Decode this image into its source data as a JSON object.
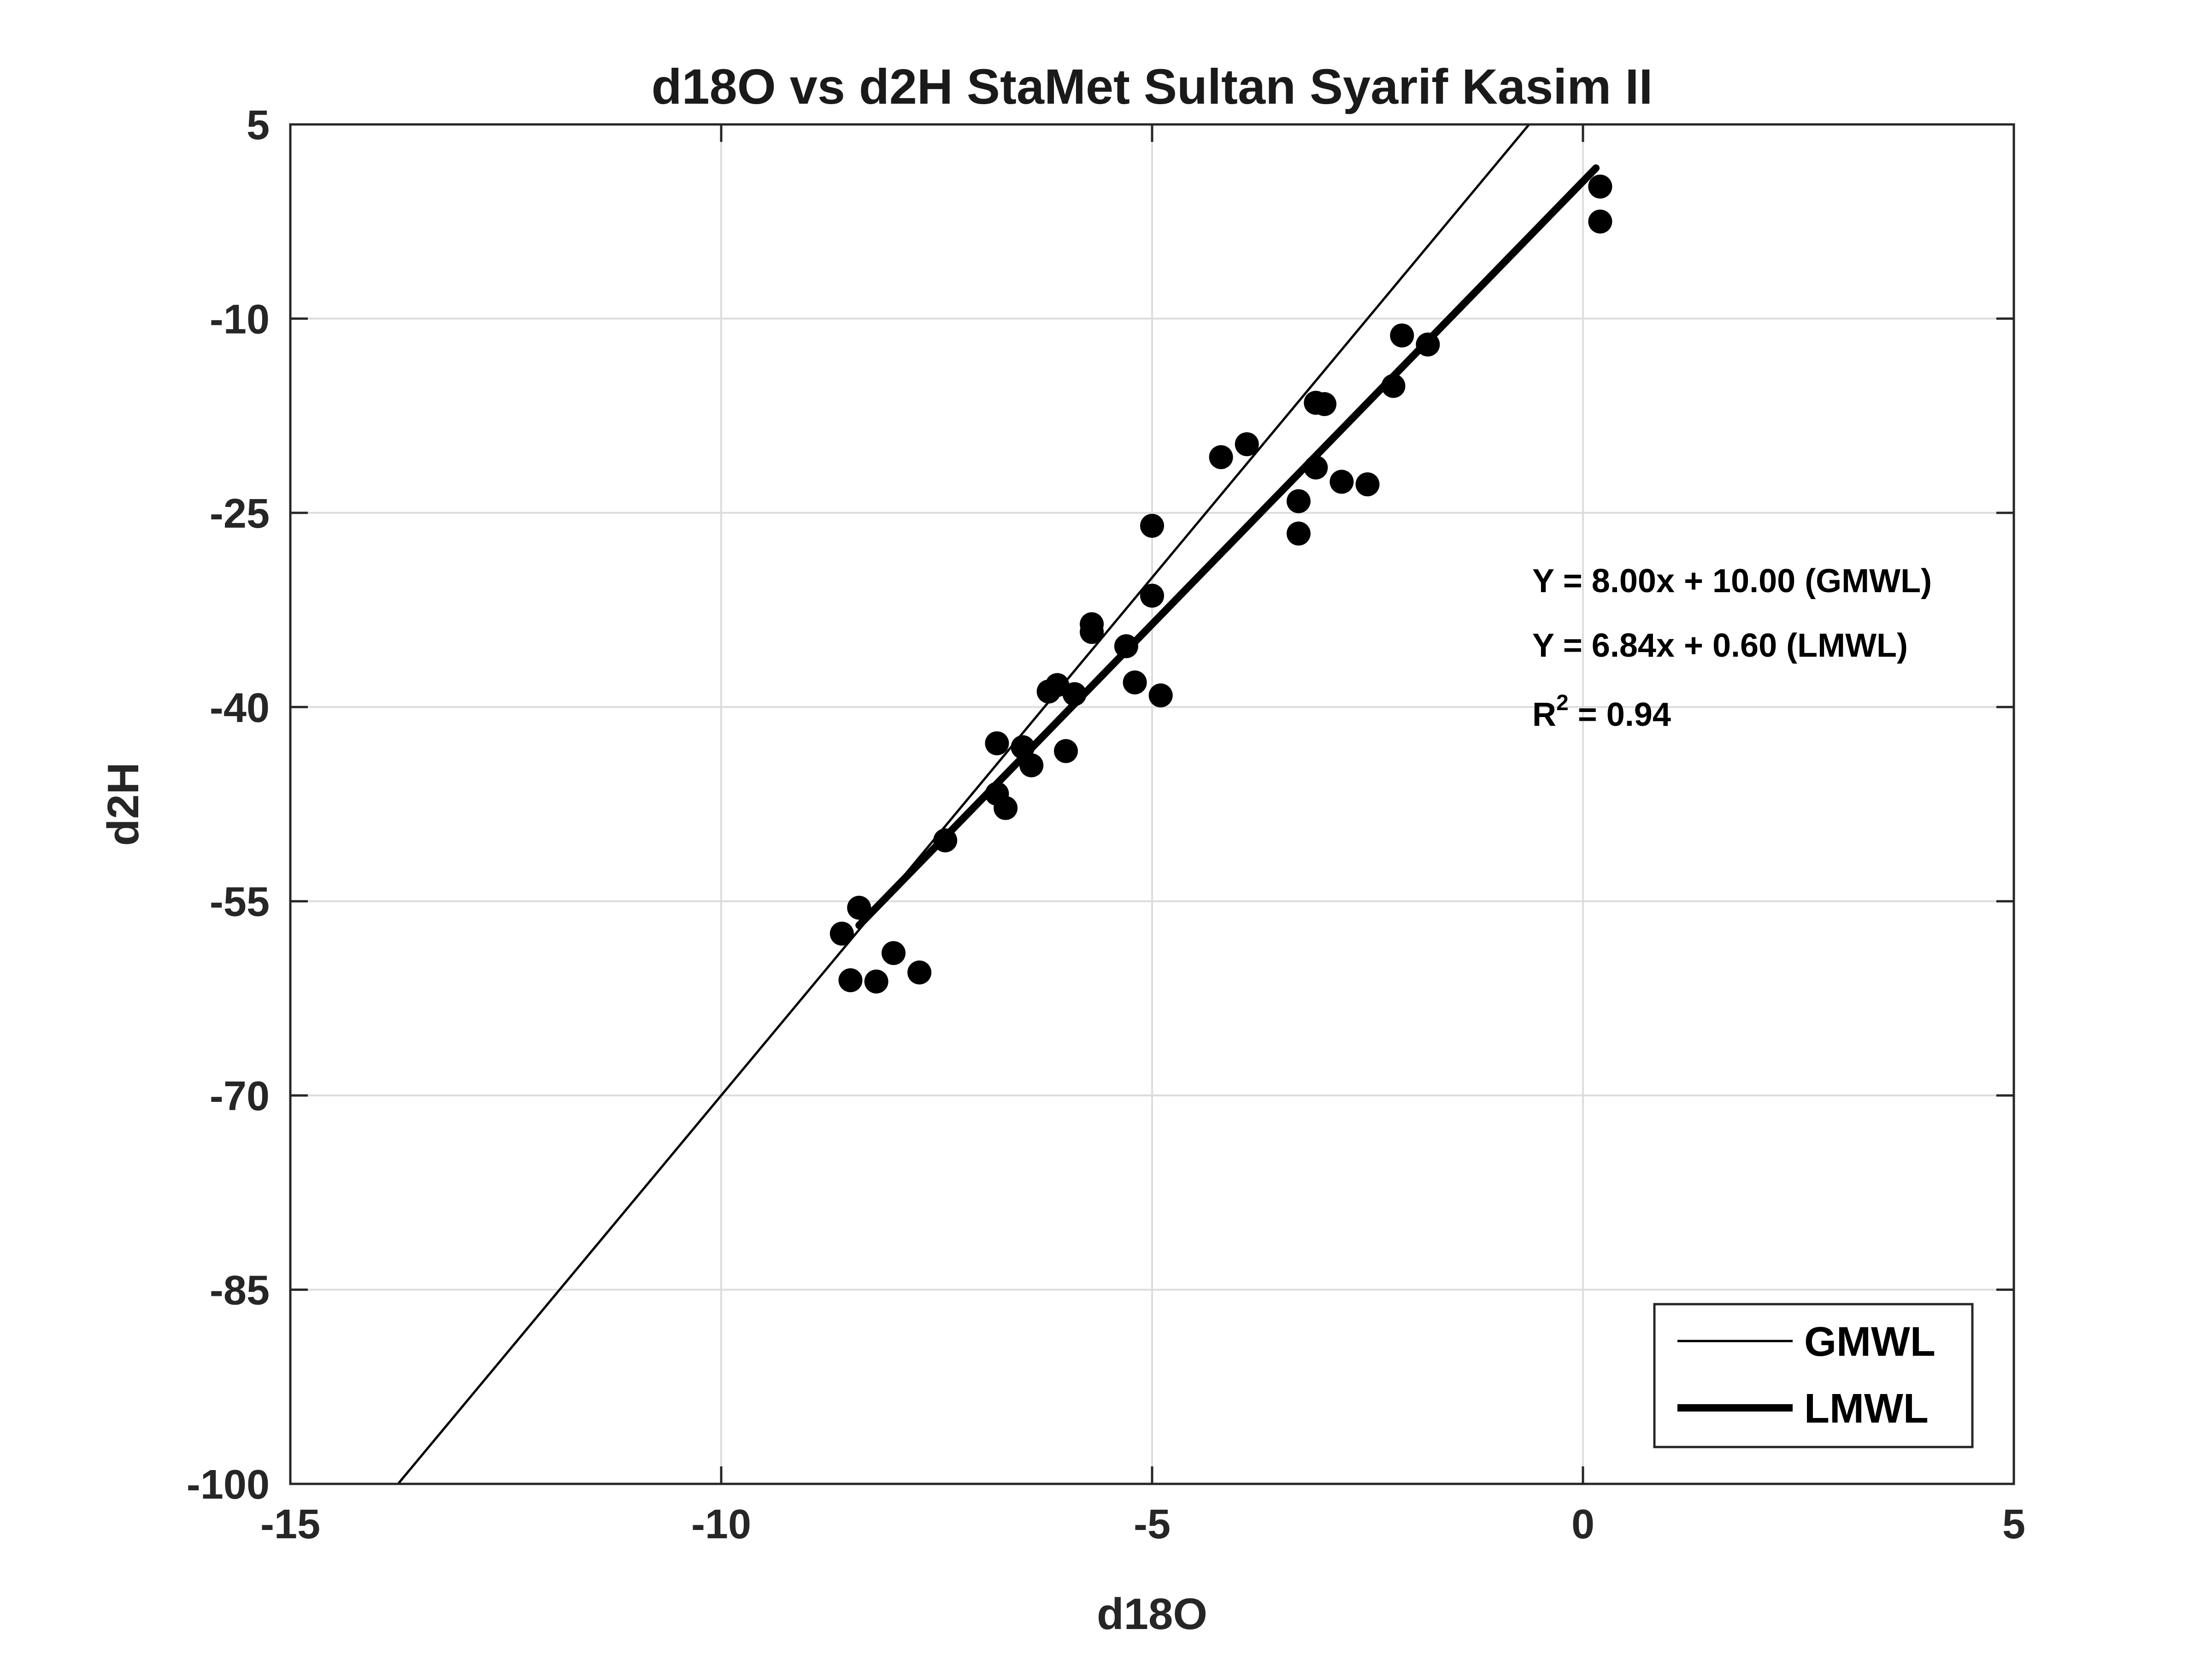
{
  "chart_data": {
    "type": "scatter",
    "title": "d18O vs d2H StaMet Sultan Syarif Kasim II",
    "xlabel": "d18O",
    "ylabel": "d2H",
    "xlim": [
      -15,
      5
    ],
    "ylim": [
      -100,
      5
    ],
    "xticks": [
      -15,
      -10,
      -5,
      0,
      5
    ],
    "yticks": [
      -100,
      -85,
      -70,
      -55,
      -40,
      -25,
      -10,
      5
    ],
    "xtick_labels": [
      "-15",
      "-10",
      "-5",
      "0",
      "5"
    ],
    "ytick_labels": [
      "-100",
      "-85",
      "-70",
      "-55",
      "-40",
      "-25",
      "-10",
      "5"
    ],
    "grid": true,
    "points": [
      {
        "x": 0.2,
        "y": 0.2
      },
      {
        "x": 0.2,
        "y": -2.5
      },
      {
        "x": -2.1,
        "y": -11.3
      },
      {
        "x": -1.8,
        "y": -12.0
      },
      {
        "x": -2.2,
        "y": -15.2
      },
      {
        "x": -3.1,
        "y": -16.5
      },
      {
        "x": -3.0,
        "y": -16.6
      },
      {
        "x": -3.9,
        "y": -19.7
      },
      {
        "x": -4.2,
        "y": -20.7
      },
      {
        "x": -3.1,
        "y": -21.5
      },
      {
        "x": -2.8,
        "y": -22.6
      },
      {
        "x": -2.5,
        "y": -22.8
      },
      {
        "x": -3.3,
        "y": -24.1
      },
      {
        "x": -3.3,
        "y": -26.6
      },
      {
        "x": -5.0,
        "y": -26.0
      },
      {
        "x": -5.0,
        "y": -31.4
      },
      {
        "x": -5.7,
        "y": -33.6
      },
      {
        "x": -5.7,
        "y": -34.2
      },
      {
        "x": -5.3,
        "y": -35.3
      },
      {
        "x": -5.2,
        "y": -38.1
      },
      {
        "x": -4.9,
        "y": -39.1
      },
      {
        "x": -6.1,
        "y": -38.3
      },
      {
        "x": -6.2,
        "y": -38.8
      },
      {
        "x": -5.9,
        "y": -39.0
      },
      {
        "x": -6.0,
        "y": -43.4
      },
      {
        "x": -6.8,
        "y": -42.8
      },
      {
        "x": -6.5,
        "y": -43.1
      },
      {
        "x": -6.4,
        "y": -44.5
      },
      {
        "x": -6.8,
        "y": -46.7
      },
      {
        "x": -6.7,
        "y": -47.8
      },
      {
        "x": -7.4,
        "y": -50.3
      },
      {
        "x": -8.4,
        "y": -55.5
      },
      {
        "x": -8.6,
        "y": -57.5
      },
      {
        "x": -8.5,
        "y": -61.1
      },
      {
        "x": -8.2,
        "y": -61.2
      },
      {
        "x": -8.0,
        "y": -59.0
      },
      {
        "x": -7.7,
        "y": -60.5
      }
    ],
    "series": [
      {
        "name": "GMWL",
        "slope": 8.0,
        "intercept": 10.0,
        "x_range": [
          -15,
          5
        ],
        "line_width": "thin",
        "color": "#000000"
      },
      {
        "name": "LMWL",
        "slope": 6.84,
        "intercept": 0.6,
        "x_range": [
          -8.4,
          0.15
        ],
        "line_width": "thick",
        "color": "#000000"
      }
    ],
    "annotations": {
      "gmwl_eq": "Y = 8.00x + 10.00 (GMWL)",
      "lmwl_eq": "Y = 6.84x + 0.60 (LMWL)",
      "r2_prefix": "R",
      "r2_sup": "2",
      "r2_value": " = 0.94"
    },
    "legend": {
      "placement": "bottom-right",
      "entries": [
        "GMWL",
        "LMWL"
      ]
    },
    "marker_color": "#000000"
  }
}
